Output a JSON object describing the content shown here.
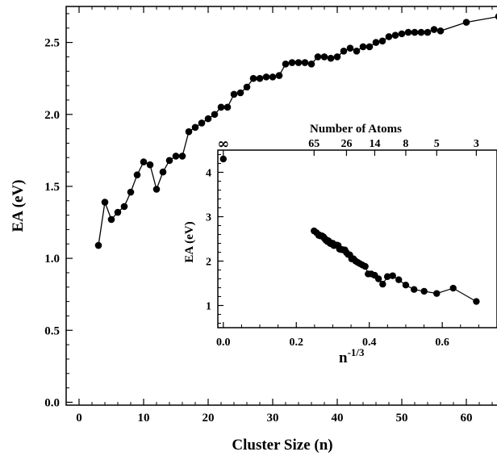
{
  "chart_data": [
    {
      "type": "line",
      "title": "",
      "xlabel": "Cluster Size (n)",
      "ylabel": "EA (eV)",
      "xlim": [
        -2,
        65
      ],
      "ylim": [
        -0.02,
        2.75
      ],
      "xticks": [
        {
          "value": 0,
          "label": "0"
        },
        {
          "value": 10,
          "label": "10"
        },
        {
          "value": 20,
          "label": "20"
        },
        {
          "value": 30,
          "label": "30"
        },
        {
          "value": 40,
          "label": "40"
        },
        {
          "value": 50,
          "label": "50"
        },
        {
          "value": 60,
          "label": "60"
        }
      ],
      "yticks": [
        {
          "value": 0.0,
          "label": "0.0"
        },
        {
          "value": 0.5,
          "label": "0.5"
        },
        {
          "value": 1.0,
          "label": "1.0"
        },
        {
          "value": 1.5,
          "label": "1.5"
        },
        {
          "value": 2.0,
          "label": "2.0"
        },
        {
          "value": 2.5,
          "label": "2.5"
        }
      ],
      "series": [
        {
          "x": [
            3,
            4,
            5,
            6,
            7,
            8,
            9,
            10,
            11,
            12,
            13,
            14,
            15,
            16,
            17,
            18,
            19,
            20,
            21,
            22,
            23,
            24,
            25,
            26,
            27,
            28,
            29,
            30,
            31,
            32,
            33,
            34,
            35,
            36,
            37,
            38,
            39,
            40,
            41,
            42,
            43,
            44,
            45,
            46,
            47,
            48,
            49,
            50,
            51,
            52,
            53,
            54,
            55,
            56,
            60,
            65
          ],
          "y": [
            1.09,
            1.39,
            1.27,
            1.32,
            1.36,
            1.46,
            1.58,
            1.67,
            1.65,
            1.48,
            1.6,
            1.68,
            1.71,
            1.71,
            1.88,
            1.91,
            1.94,
            1.97,
            2.0,
            2.05,
            2.05,
            2.14,
            2.15,
            2.19,
            2.25,
            2.25,
            2.26,
            2.26,
            2.27,
            2.35,
            2.36,
            2.36,
            2.36,
            2.35,
            2.4,
            2.4,
            2.39,
            2.4,
            2.44,
            2.46,
            2.44,
            2.47,
            2.47,
            2.5,
            2.51,
            2.54,
            2.55,
            2.56,
            2.57,
            2.57,
            2.57,
            2.57,
            2.59,
            2.58,
            2.64,
            2.68
          ]
        }
      ],
      "grid": false
    },
    {
      "type": "line",
      "title": "",
      "xlabel": "n-1/3",
      "ylabel": "EA (eV)",
      "top_axis_label": "Number of Atoms",
      "xlim": [
        -0.015,
        0.75
      ],
      "ylim": [
        0.5,
        4.5
      ],
      "xticks": [
        {
          "value": 0.0,
          "label": "0.0"
        },
        {
          "value": 0.2,
          "label": "0.2"
        },
        {
          "value": 0.4,
          "label": "0.4"
        },
        {
          "value": 0.6,
          "label": "0.6"
        }
      ],
      "yticks": [
        {
          "value": 1,
          "label": "1"
        },
        {
          "value": 2,
          "label": "2"
        },
        {
          "value": 3,
          "label": "3"
        },
        {
          "value": 4,
          "label": "4"
        }
      ],
      "top_ticks": [
        {
          "n": 65,
          "label": "65"
        },
        {
          "n": 26,
          "label": "26"
        },
        {
          "n": 14,
          "label": "14"
        },
        {
          "n": 8,
          "label": "8"
        },
        {
          "n": 5,
          "label": "5"
        },
        {
          "n": 3,
          "label": "3"
        }
      ],
      "infinity_label": "∞",
      "bulk_point": {
        "x": 0.0,
        "y": 4.3
      },
      "uses_main_series": true
    }
  ]
}
